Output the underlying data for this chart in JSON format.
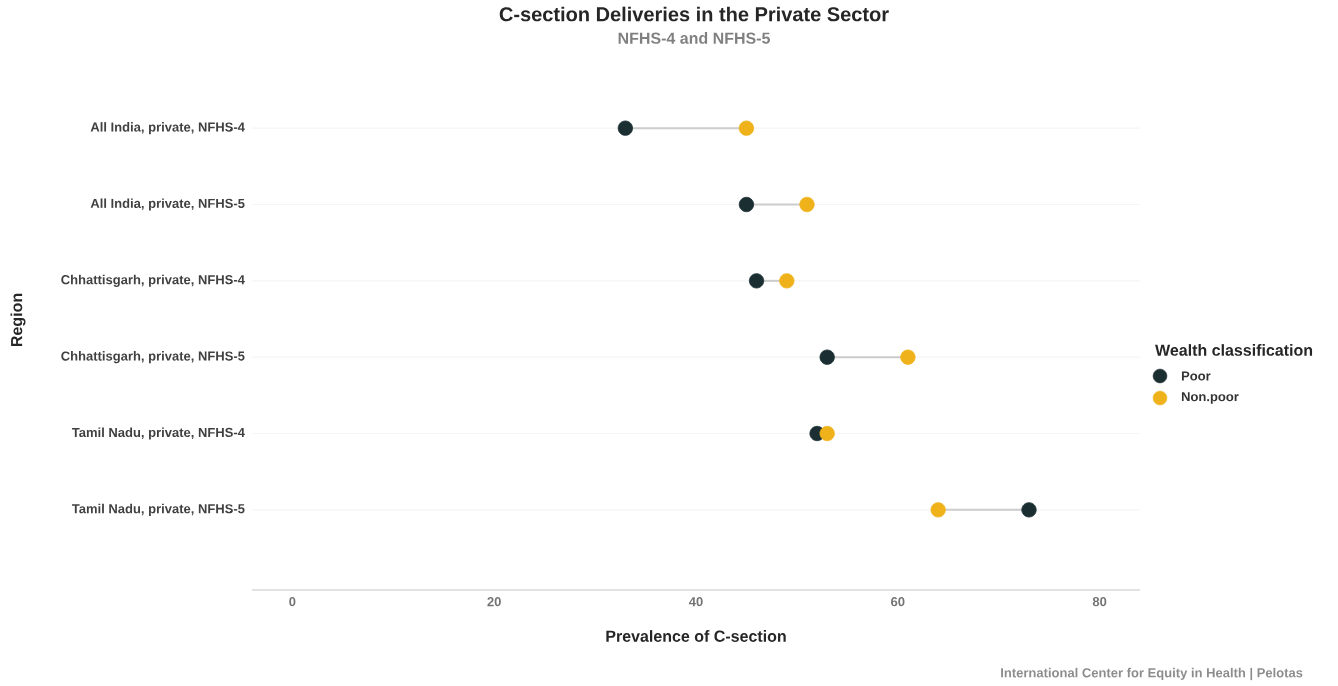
{
  "chart_data": {
    "type": "scatter",
    "orientation": "horizontal",
    "title": "C-section Deliveries in the Private Sector",
    "subtitle": "NFHS-4 and NFHS-5",
    "xlabel": "Prevalence of C-section",
    "ylabel": "Region",
    "legend_title": "Wealth classification",
    "categories": [
      "All India, private, NFHS-4",
      "All India, private, NFHS-5",
      "Chhattisgarh, private, NFHS-4",
      "Chhattisgarh, private, NFHS-5",
      "Tamil Nadu, private, NFHS-4",
      "Tamil Nadu, private, NFHS-5"
    ],
    "series": [
      {
        "name": "Poor",
        "color": "#1b2f33",
        "values": [
          33,
          45,
          46,
          53,
          52,
          73
        ]
      },
      {
        "name": "Non.poor",
        "color": "#f0b21a",
        "values": [
          45,
          51,
          49,
          61,
          53,
          64
        ]
      }
    ],
    "xlim": [
      -4,
      84
    ],
    "xticks": [
      0,
      20,
      40,
      60,
      80
    ],
    "grid": "y",
    "legend": "right",
    "marker": "circle",
    "annotations": [
      "International Center for Equity in Health | Pelotas"
    ]
  }
}
